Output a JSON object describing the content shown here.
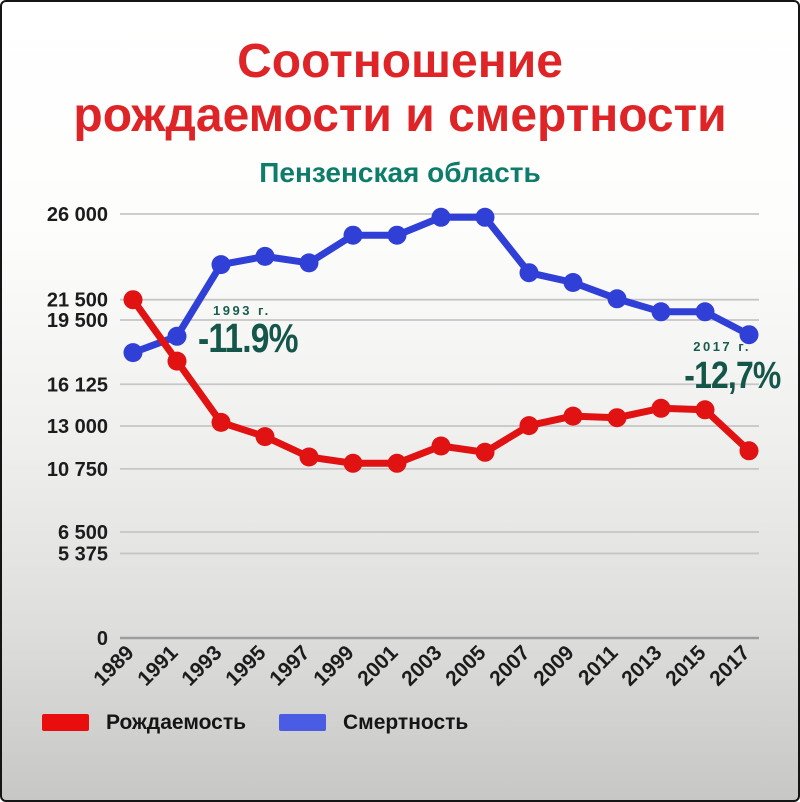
{
  "header": {
    "title_line1": "Соотношение",
    "title_line2": "рождаемости и смертности",
    "subtitle": "Пензенская область"
  },
  "colors": {
    "title_red": "#df2427",
    "subtitle_teal": "#0e7c6a",
    "annotation_teal": "#14564a",
    "births_red": "#e01212",
    "deaths_blue": "#3040d6",
    "legend_births_red": "#ea0d0d",
    "legend_deaths_blue": "#4a5be4",
    "gridline_gray": "#c6c6c6",
    "axis_text": "#1c1c1c"
  },
  "chart_data": {
    "type": "line",
    "title": "Соотношение рождаемости и смертности",
    "subtitle": "Пензенская область",
    "categories": [
      "1989",
      "1991",
      "1993",
      "1995",
      "1997",
      "1999",
      "2001",
      "2003",
      "2005",
      "2007",
      "2009",
      "2011",
      "2013",
      "2015",
      "2017"
    ],
    "series": [
      {
        "name": "Рождаемость",
        "color": "#e01212",
        "legend_color": "#ea0d0d",
        "axis_max": 21500,
        "values": [
          21500,
          17600,
          13700,
          12800,
          11500,
          11100,
          11100,
          12200,
          11800,
          13500,
          14100,
          14000,
          14600,
          14500,
          11900
        ]
      },
      {
        "name": "Смертность",
        "color": "#3040d6",
        "legend_color": "#4a5be4",
        "axis_max": 26000,
        "values": [
          17500,
          18500,
          22900,
          23400,
          23000,
          24700,
          24700,
          25800,
          25800,
          22400,
          21800,
          20800,
          20000,
          20000,
          18600
        ]
      }
    ],
    "y_ticks": [
      {
        "label": "26 000",
        "value": 26000,
        "scale_max": 26000
      },
      {
        "label": "21 500",
        "value": 21500,
        "scale_max": 21500
      },
      {
        "label": "19 500",
        "value": 19500,
        "scale_max": 26000
      },
      {
        "label": "16 125",
        "value": 16125,
        "scale_max": 21500
      },
      {
        "label": "13 000",
        "value": 13000,
        "scale_max": 26000
      },
      {
        "label": "10 750",
        "value": 10750,
        "scale_max": 21500
      },
      {
        "label": "6 500",
        "value": 6500,
        "scale_max": 26000
      },
      {
        "label": "5 375",
        "value": 5375,
        "scale_max": 21500
      },
      {
        "label": "0",
        "value": 0,
        "scale_max": 26000
      }
    ],
    "ylim": [
      0,
      26000
    ],
    "grid": true,
    "legend_position": "bottom",
    "annotations": [
      {
        "year_label": "1993 г.",
        "value_label": "-11.9%"
      },
      {
        "year_label": "2017 г.",
        "value_label": "-12,7%"
      }
    ]
  }
}
